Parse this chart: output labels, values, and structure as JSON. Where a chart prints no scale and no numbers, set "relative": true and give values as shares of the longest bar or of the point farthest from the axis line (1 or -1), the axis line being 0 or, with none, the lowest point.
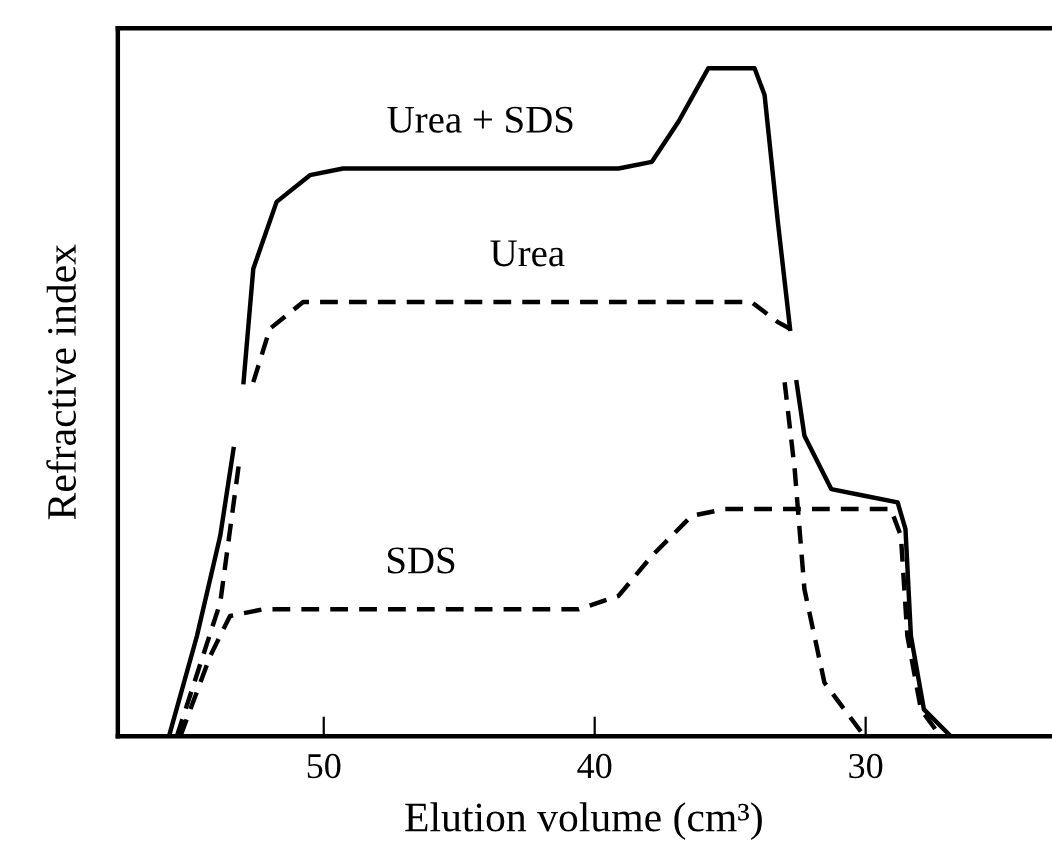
{
  "chart_data": {
    "type": "line",
    "relative": true,
    "xlabel": "Elution volume (cm³)",
    "ylabel": "Refractive index",
    "xlim": [
      57.6,
      23.2
    ],
    "xticks": [
      50,
      40,
      30
    ],
    "grid": false,
    "legend": false,
    "marker": "none",
    "series": [
      {
        "name": "Urea + SDS",
        "color": "#000000",
        "line_style": "solid",
        "x": [
          55.71,
          54.68,
          53.82,
          53.33,
          53.1,
          52.96,
          52.6,
          51.74,
          50.51,
          49.29,
          39.12,
          37.89,
          36.91,
          35.81,
          34.1,
          33.73,
          33.24,
          32.79,
          32.65,
          32.55,
          32.26,
          31.27,
          30.05,
          28.82,
          28.53,
          28.33,
          27.85,
          26.86
        ],
        "values": [
          0,
          0.15,
          0.3,
          0.43,
          null,
          0.53,
          0.7,
          0.8,
          0.84,
          0.85,
          0.85,
          0.86,
          0.92,
          1.0,
          1.0,
          0.96,
          0.77,
          0.61,
          null,
          0.53,
          0.45,
          0.37,
          0.36,
          0.35,
          0.31,
          0.15,
          0.04,
          0
        ]
      },
      {
        "name": "Urea",
        "color": "#000000",
        "line_style": "dashed",
        "x": [
          55.42,
          53.82,
          53.09,
          52.8,
          52.6,
          51.99,
          50.76,
          34.21,
          33.24,
          32.79,
          32.9,
          32.99,
          32.62,
          32.26,
          31.52,
          30.05
        ],
        "values": [
          0,
          0.2,
          0.42,
          null,
          0.53,
          0.61,
          0.65,
          0.65,
          0.62,
          0.61,
          null,
          0.53,
          0.4,
          0.22,
          0.08,
          0
        ]
      },
      {
        "name": "SDS",
        "color": "#000000",
        "line_style": "dashed",
        "x": [
          55.29,
          54.19,
          53.46,
          52.23,
          40.59,
          39.12,
          37.89,
          36.42,
          35.19,
          29.07,
          28.7,
          28.46,
          27.96,
          27.24
        ],
        "values": [
          0,
          0.12,
          0.18,
          0.19,
          0.19,
          0.21,
          0.27,
          0.33,
          0.34,
          0.34,
          0.3,
          0.15,
          0.04,
          0
        ]
      }
    ]
  }
}
